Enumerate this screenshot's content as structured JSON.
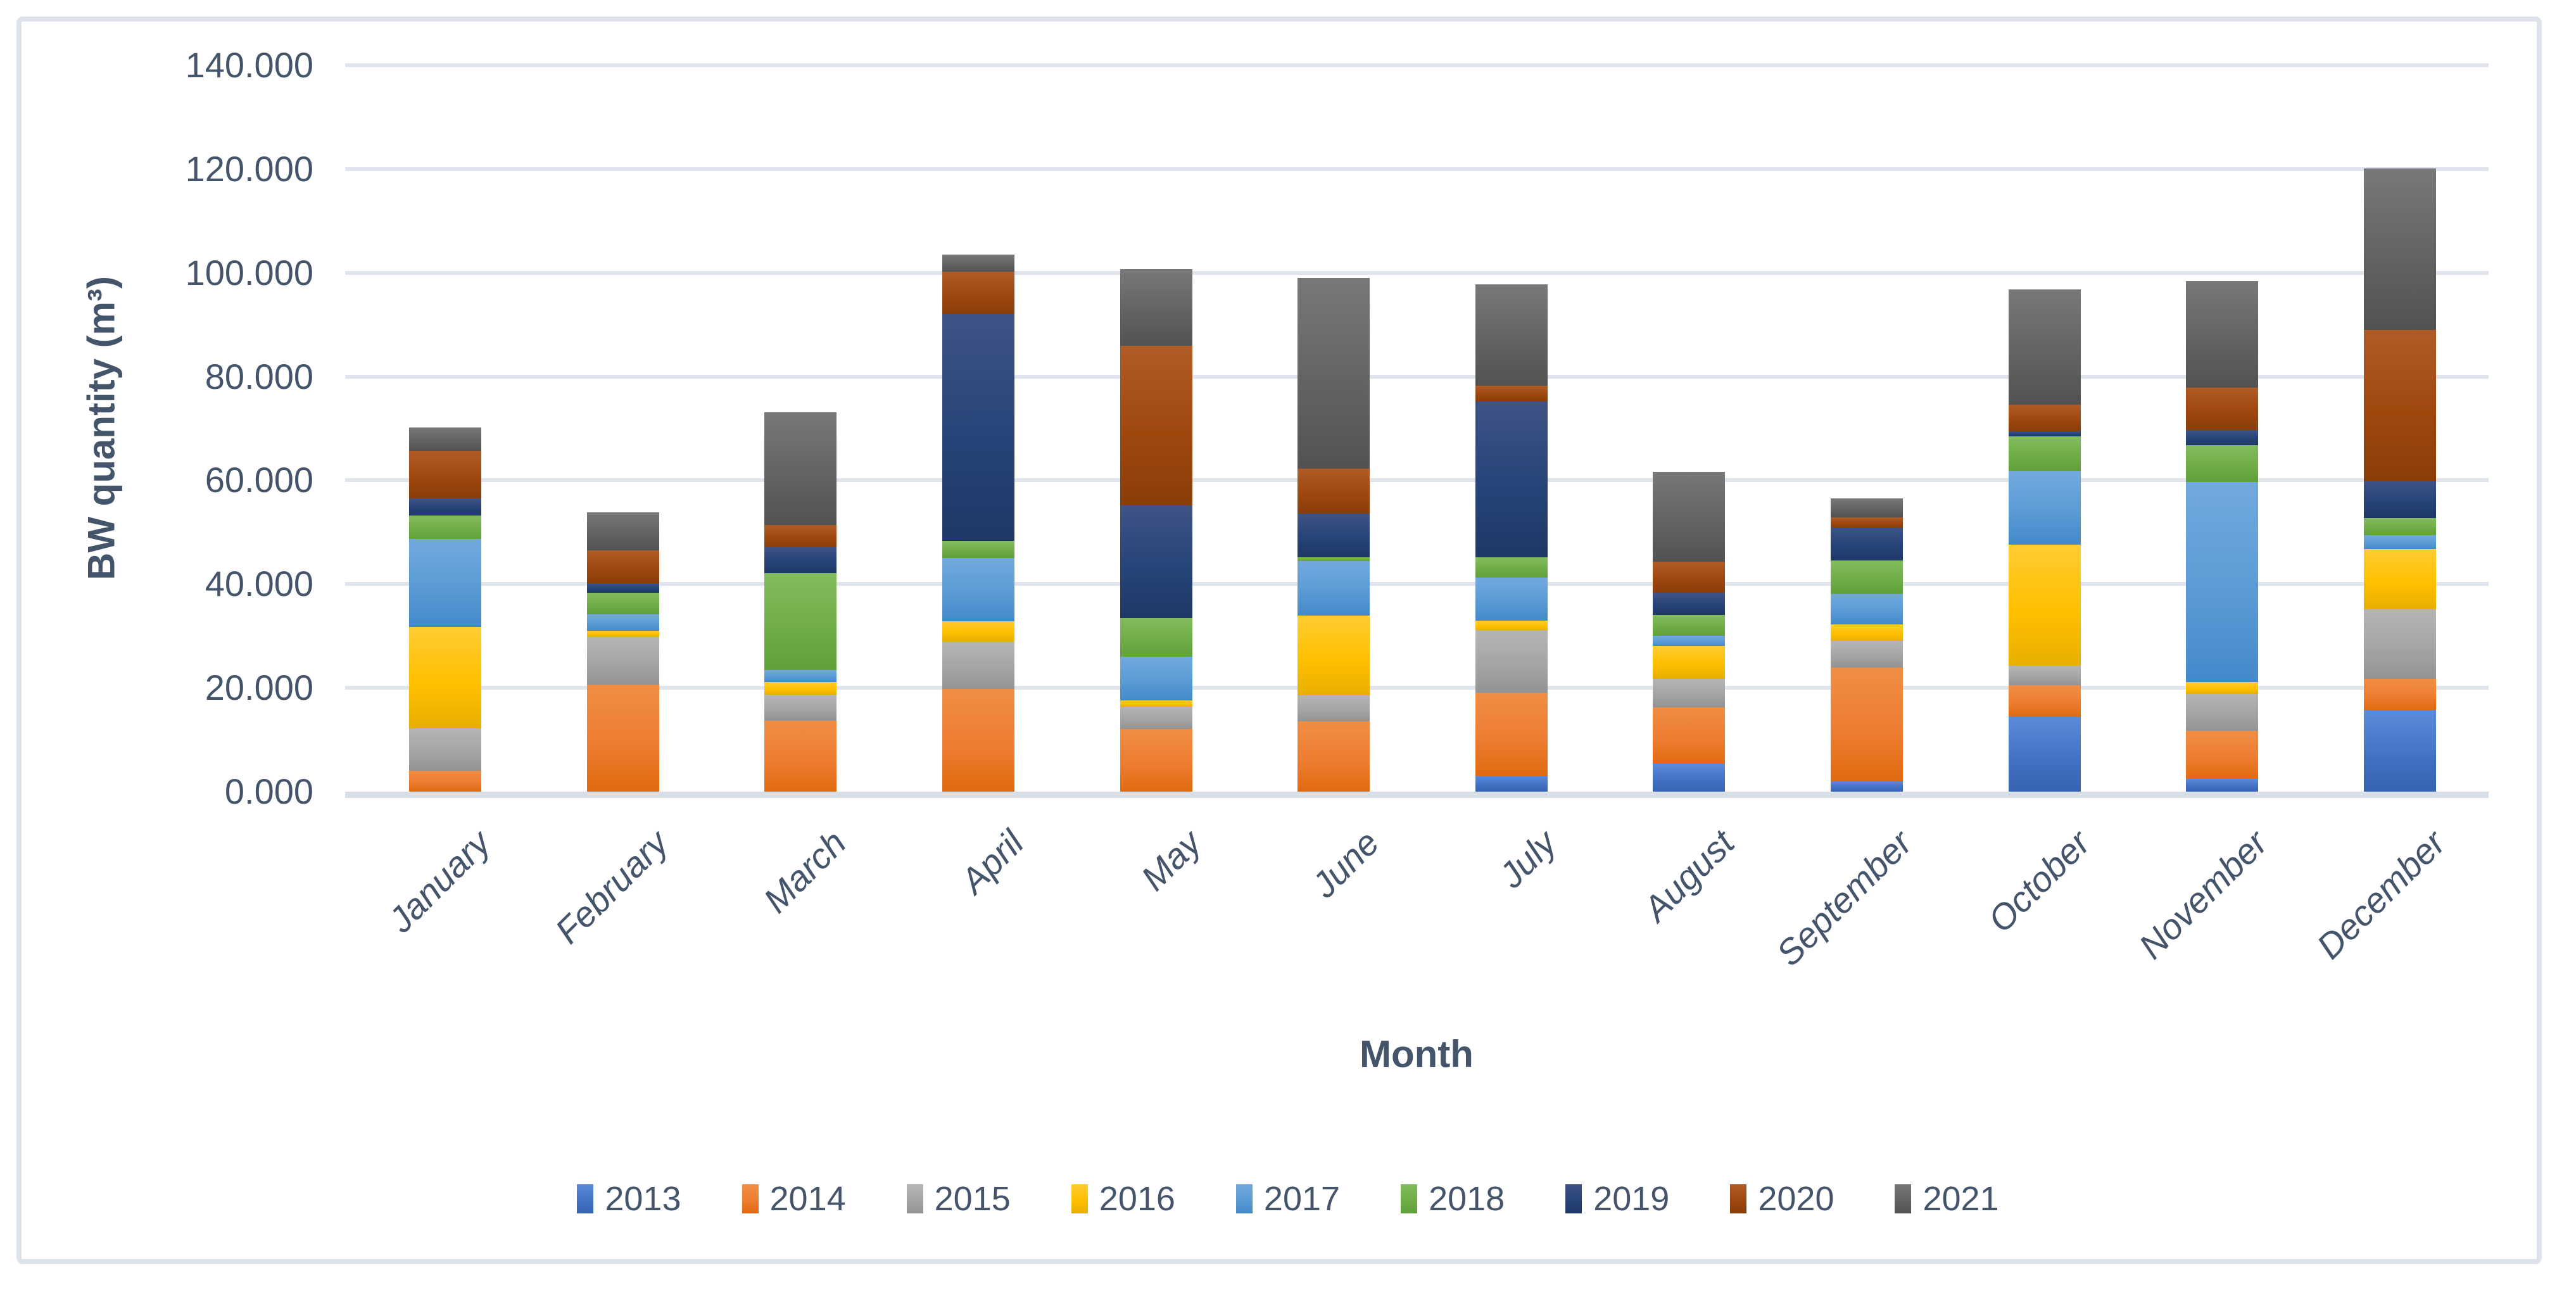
{
  "chart_data": {
    "type": "bar",
    "stacked": true,
    "title": "",
    "xlabel": "Month",
    "ylabel": "BW quantity (m³)",
    "ylim": [
      0,
      140000
    ],
    "y_tick_step": 20000,
    "y_tick_labels": [
      "0.000",
      "20.000",
      "40.000",
      "60.000",
      "80.000",
      "100.000",
      "120.000",
      "140.000"
    ],
    "grid": true,
    "legend_position": "bottom",
    "categories": [
      "January",
      "February",
      "March",
      "April",
      "May",
      "June",
      "July",
      "August",
      "September",
      "October",
      "November",
      "December"
    ],
    "series": [
      {
        "name": "2013",
        "color": "#4472C4",
        "color_light": "#5B8BD9",
        "color_dark": "#3664B0",
        "values": [
          0,
          0,
          0,
          0,
          0,
          0,
          3100,
          5400,
          2000,
          14400,
          2400,
          15800
        ]
      },
      {
        "name": "2014",
        "color": "#ED7D31",
        "color_light": "#F08E44",
        "color_dark": "#E06A10",
        "values": [
          4000,
          20600,
          13700,
          19800,
          12100,
          13500,
          15900,
          10800,
          21900,
          6100,
          9300,
          5900
        ]
      },
      {
        "name": "2015",
        "color": "#A5A5A5",
        "color_light": "#B5B5B5",
        "color_dark": "#939393",
        "values": [
          8200,
          9300,
          5000,
          9100,
          4300,
          5100,
          12100,
          5500,
          5100,
          3800,
          7100,
          13500
        ]
      },
      {
        "name": "2016",
        "color": "#FFC000",
        "color_light": "#FFCC33",
        "color_dark": "#E8AF00",
        "values": [
          19500,
          1100,
          2400,
          3900,
          1200,
          15300,
          1900,
          6400,
          3200,
          23300,
          2300,
          11500
        ]
      },
      {
        "name": "2017",
        "color": "#5B9BD5",
        "color_light": "#72A9DF",
        "color_dark": "#4389CA",
        "values": [
          17000,
          3200,
          2300,
          12300,
          8400,
          10500,
          8200,
          1900,
          5900,
          14200,
          38600,
          2700
        ]
      },
      {
        "name": "2018",
        "color": "#70AD47",
        "color_light": "#83BC5E",
        "color_dark": "#60A139",
        "values": [
          4500,
          4100,
          18700,
          3200,
          7400,
          800,
          4000,
          4100,
          6500,
          6700,
          7100,
          3300
        ]
      },
      {
        "name": "2019",
        "color": "#264478",
        "color_light": "#3F5386",
        "color_dark": "#1E3866",
        "values": [
          3300,
          1900,
          5000,
          43800,
          21800,
          8400,
          30000,
          4200,
          6300,
          900,
          2900,
          7100
        ]
      },
      {
        "name": "2020",
        "color": "#9E480E",
        "color_light": "#B05C26",
        "color_dark": "#8A3D08",
        "values": [
          9200,
          6300,
          4300,
          8100,
          30700,
          8600,
          3100,
          6000,
          1900,
          5200,
          8200,
          29200
        ]
      },
      {
        "name": "2021",
        "color": "#636363",
        "color_light": "#787878",
        "color_dark": "#525252",
        "values": [
          4500,
          7300,
          21700,
          3300,
          14800,
          36800,
          19500,
          17300,
          3700,
          22200,
          20500,
          31100
        ]
      }
    ],
    "monthly_totals": [
      70200,
      53800,
      73100,
      103500,
      100700,
      99000,
      97800,
      61600,
      56500,
      96800,
      98400,
      120100
    ]
  },
  "frame": {
    "border_color": "#DEE3EB"
  },
  "colors": {
    "text": "#44546A",
    "gridline": "#E0E5ED",
    "axis_line": "#D9DFE8"
  }
}
